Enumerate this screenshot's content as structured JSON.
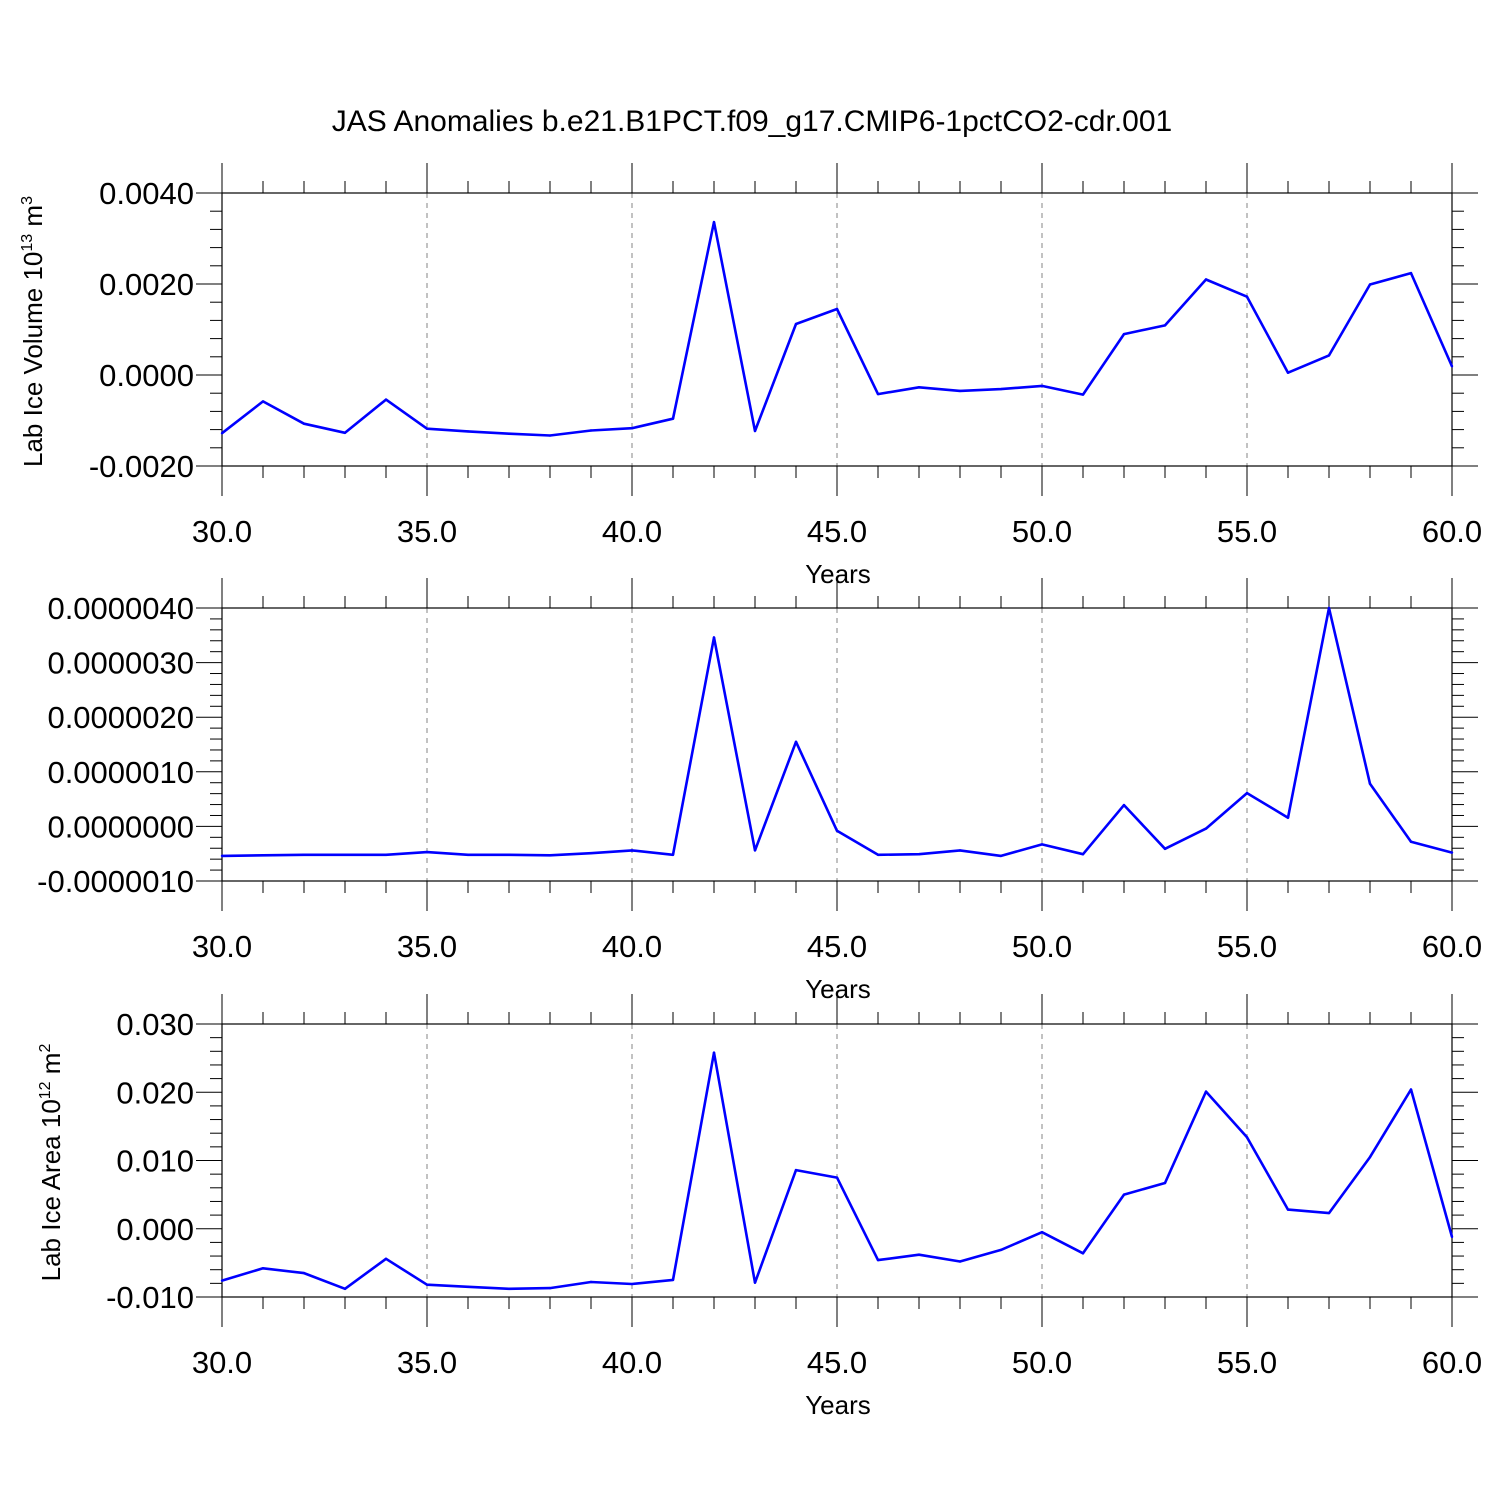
{
  "title": "JAS Anomalies b.e21.B1PCT.f09_g17.CMIP6-1pctCO2-cdr.001",
  "colors": {
    "series": "#0000ff",
    "axis": "#000000",
    "grid": "#999999"
  },
  "chart_data": [
    {
      "type": "line",
      "xlabel": "Years",
      "ylabel": {
        "base": "Lab Ice Volume 10",
        "exp1": "13",
        "mid": " m",
        "exp2": "3"
      },
      "xlim": [
        30,
        60
      ],
      "ylim": [
        -0.002,
        0.004
      ],
      "xticks": [
        "30.0",
        "35.0",
        "40.0",
        "45.0",
        "50.0",
        "55.0",
        "60.0"
      ],
      "yticks": [
        "-0.0020",
        "0.0000",
        "0.0020",
        "0.0040"
      ],
      "grid": "vertical dashed at major x ticks",
      "x": [
        30,
        31,
        32,
        33,
        34,
        35,
        36,
        37,
        38,
        39,
        40,
        41,
        42,
        43,
        44,
        45,
        46,
        47,
        48,
        49,
        50,
        51,
        52,
        53,
        54,
        55,
        56,
        57,
        58,
        59,
        60
      ],
      "values": [
        -0.00128,
        -0.00058,
        -0.00107,
        -0.00127,
        -0.00054,
        -0.00118,
        -0.00124,
        -0.00129,
        -0.00133,
        -0.00122,
        -0.00117,
        -0.00096,
        0.00336,
        -0.00123,
        0.00112,
        0.00145,
        -0.00042,
        -0.00027,
        -0.00035,
        -0.00031,
        -0.00024,
        -0.00043,
        0.0009,
        0.00109,
        0.0021,
        0.00172,
        5e-05,
        0.00043,
        0.00199,
        0.00224,
        0.00019
      ]
    },
    {
      "type": "line",
      "xlabel": "Years",
      "ylabel": null,
      "xlim": [
        30,
        60
      ],
      "ylim": [
        -1e-06,
        4e-06
      ],
      "xticks": [
        "30.0",
        "35.0",
        "40.0",
        "45.0",
        "50.0",
        "55.0",
        "60.0"
      ],
      "yticks": [
        "-0.0000010",
        "0.0000000",
        "0.0000010",
        "0.0000020",
        "0.0000030",
        "0.0000040"
      ],
      "grid": "vertical dashed at major x ticks",
      "x": [
        30,
        31,
        32,
        33,
        34,
        35,
        36,
        37,
        38,
        39,
        40,
        41,
        42,
        43,
        44,
        45,
        46,
        47,
        48,
        49,
        50,
        51,
        52,
        53,
        54,
        55,
        56,
        57,
        58,
        59,
        60
      ],
      "values": [
        -5.4e-07,
        -5.3e-07,
        -5.2e-07,
        -5.2e-07,
        -5.2e-07,
        -4.7e-07,
        -5.2e-07,
        -5.2e-07,
        -5.3e-07,
        -4.9e-07,
        -4.4e-07,
        -5.2e-07,
        3.46e-06,
        -4.4e-07,
        1.55e-06,
        -8e-08,
        -5.2e-07,
        -5.1e-07,
        -4.4e-07,
        -5.4e-07,
        -3.3e-07,
        -5.1e-07,
        3.9e-07,
        -4.1e-07,
        -4e-08,
        6.1e-07,
        1.6e-07,
        4e-06,
        7.8e-07,
        -2.8e-07,
        -4.8e-07
      ]
    },
    {
      "type": "line",
      "xlabel": "Years",
      "ylabel": {
        "base": "Lab Ice Area 10",
        "exp1": "12",
        "mid": " m",
        "exp2": "2"
      },
      "xlim": [
        30,
        60
      ],
      "ylim": [
        -0.01,
        0.03
      ],
      "xticks": [
        "30.0",
        "35.0",
        "40.0",
        "45.0",
        "50.0",
        "55.0",
        "60.0"
      ],
      "yticks": [
        "-0.010",
        "0.000",
        "0.010",
        "0.020",
        "0.030"
      ],
      "grid": "vertical dashed at major x ticks",
      "x": [
        30,
        31,
        32,
        33,
        34,
        35,
        36,
        37,
        38,
        39,
        40,
        41,
        42,
        43,
        44,
        45,
        46,
        47,
        48,
        49,
        50,
        51,
        52,
        53,
        54,
        55,
        56,
        57,
        58,
        59,
        60
      ],
      "values": [
        -0.0076,
        -0.0058,
        -0.0065,
        -0.0088,
        -0.0044,
        -0.0082,
        -0.0085,
        -0.0088,
        -0.0087,
        -0.0078,
        -0.0081,
        -0.0075,
        0.0258,
        -0.0079,
        0.0086,
        0.0075,
        -0.0046,
        -0.0038,
        -0.0048,
        -0.0031,
        -0.0005,
        -0.0036,
        0.005,
        0.0067,
        0.0201,
        0.0134,
        0.0028,
        0.0023,
        0.0105,
        0.0204,
        -0.0012
      ]
    }
  ]
}
